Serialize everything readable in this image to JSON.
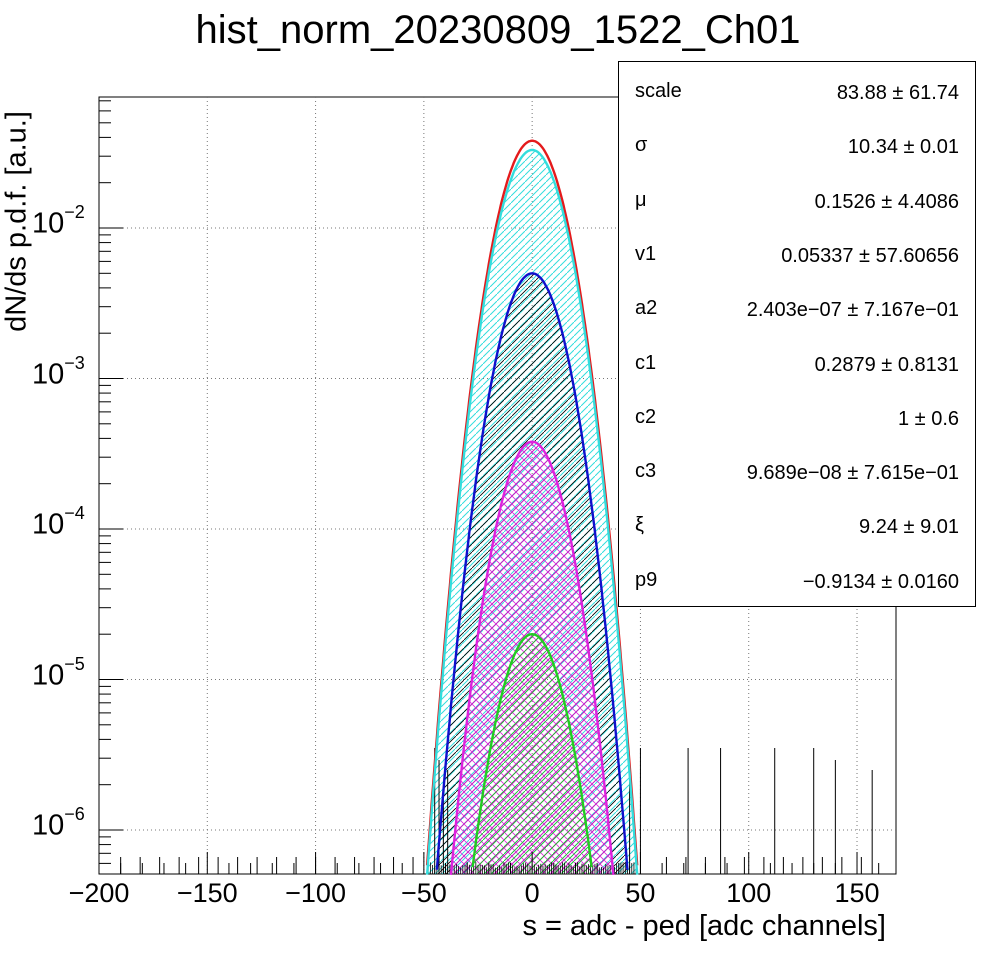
{
  "chart_data": {
    "type": "line",
    "title": "hist_norm_20230809_1522_Ch01",
    "xlabel": "s = adc - ped [adc channels]",
    "ylabel": "dN/ds p.d.f. [a.u.]",
    "xlim": [
      -200,
      168
    ],
    "ylim": [
      5e-07,
      0.075
    ],
    "yscale": "log",
    "grid": true,
    "x_ticks": [
      "−200",
      "−150",
      "−100",
      "−50",
      "0",
      "50",
      "100",
      "150"
    ],
    "y_ticks": [
      {
        "base": "10",
        "exp": "−2"
      },
      {
        "base": "10",
        "exp": "−3"
      },
      {
        "base": "10",
        "exp": "−4"
      },
      {
        "base": "10",
        "exp": "−5"
      },
      {
        "base": "10",
        "exp": "−6"
      }
    ],
    "series": [
      {
        "color": "#e41a1c",
        "peak": 0.038,
        "mu": 0,
        "sigma": 10.3
      },
      {
        "color": "#33dddd",
        "peak": 0.033,
        "mu": 0,
        "sigma": 10.3
      },
      {
        "color": "#1010cc",
        "peak": 0.005,
        "mu": 0,
        "sigma": 10.3
      },
      {
        "color": "#dd22dd",
        "peak": 0.00038,
        "mu": 0,
        "sigma": 10.3
      },
      {
        "color": "#22cc22",
        "peak": 2e-05,
        "mu": 0,
        "sigma": 10.3
      }
    ],
    "stats_box": [
      {
        "name": "scale",
        "value": "83.88 ± 61.74"
      },
      {
        "name": "σ",
        "value": "10.34 ± 0.01"
      },
      {
        "name": "μ",
        "value": "0.1526 ± 4.4086"
      },
      {
        "name": "v1",
        "value": "0.05337 ± 57.60656"
      },
      {
        "name": "a2",
        "value": "2.403e−07 ± 7.167e−01"
      },
      {
        "name": "c1",
        "value": "0.2879 ± 0.8131"
      },
      {
        "name": "c2",
        "value": "1 ± 0.6"
      },
      {
        "name": "c3",
        "value": "9.689e−08 ± 7.615e−01"
      },
      {
        "name": "ξ",
        "value": "9.24 ± 9.01"
      },
      {
        "name": "p9",
        "value": "−0.9134 ± 0.0160"
      }
    ]
  }
}
